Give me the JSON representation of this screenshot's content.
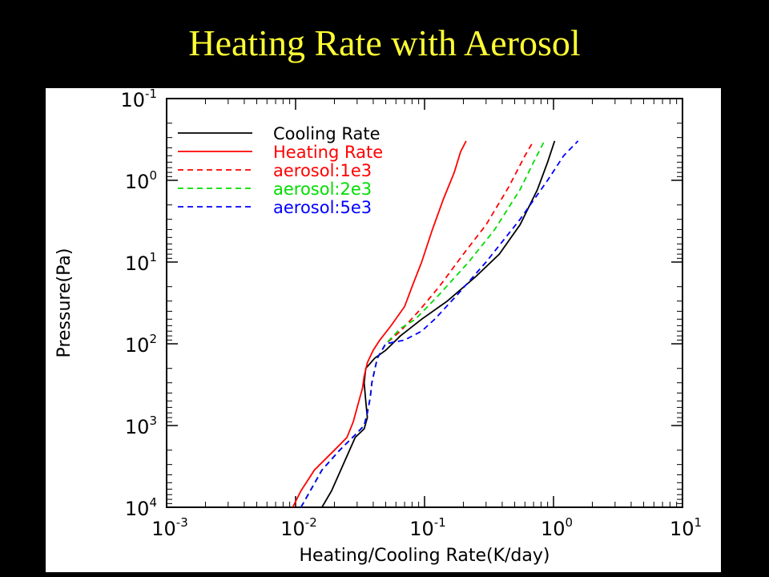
{
  "slide": {
    "title": "Heating Rate with Aerosol"
  },
  "chart_data": {
    "type": "line",
    "title": "",
    "xlabel": "Heating/Cooling Rate(K/day)",
    "ylabel": "Pressure(Pa)",
    "xscale": "log",
    "yscale": "log",
    "yaxis_inverted": true,
    "xlim": [
      0.001,
      10
    ],
    "ylim": [
      10000,
      0.1
    ],
    "grid": false,
    "legend_position": "top-left",
    "x_ticks": [
      {
        "value": 0.001,
        "base": "10",
        "exp": "-3"
      },
      {
        "value": 0.01,
        "base": "10",
        "exp": "-2"
      },
      {
        "value": 0.1,
        "base": "10",
        "exp": "-1"
      },
      {
        "value": 1,
        "base": "10",
        "exp": "0"
      },
      {
        "value": 10,
        "base": "10",
        "exp": "1"
      }
    ],
    "y_ticks": [
      {
        "value": 0.1,
        "base": "10",
        "exp": "-1"
      },
      {
        "value": 1,
        "base": "10",
        "exp": "0"
      },
      {
        "value": 10,
        "base": "10",
        "exp": "1"
      },
      {
        "value": 100,
        "base": "10",
        "exp": "2"
      },
      {
        "value": 1000,
        "base": "10",
        "exp": "3"
      },
      {
        "value": 10000,
        "base": "10",
        "exp": "4"
      }
    ],
    "series": [
      {
        "name": "Cooling Rate",
        "color": "#000000",
        "dash": "solid",
        "points": [
          [
            0.016,
            10000
          ],
          [
            0.019,
            6300
          ],
          [
            0.023,
            3200
          ],
          [
            0.029,
            1400
          ],
          [
            0.034,
            1100
          ],
          [
            0.036,
            800
          ],
          [
            0.035,
            500
          ],
          [
            0.034,
            300
          ],
          [
            0.035,
            200
          ],
          [
            0.041,
            150
          ],
          [
            0.05,
            120
          ],
          [
            0.065,
            80
          ],
          [
            0.095,
            50
          ],
          [
            0.15,
            30
          ],
          [
            0.25,
            15
          ],
          [
            0.38,
            8
          ],
          [
            0.55,
            3.5
          ],
          [
            0.75,
            1.3
          ],
          [
            0.9,
            0.6
          ],
          [
            1.02,
            0.33
          ]
        ]
      },
      {
        "name": "Heating Rate",
        "color": "#ff0000",
        "dash": "solid",
        "points": [
          [
            0.0095,
            10000
          ],
          [
            0.011,
            6300
          ],
          [
            0.014,
            3500
          ],
          [
            0.02,
            2000
          ],
          [
            0.025,
            1400
          ],
          [
            0.028,
            900
          ],
          [
            0.031,
            500
          ],
          [
            0.033,
            350
          ],
          [
            0.034,
            250
          ],
          [
            0.036,
            170
          ],
          [
            0.04,
            120
          ],
          [
            0.045,
            90
          ],
          [
            0.055,
            60
          ],
          [
            0.07,
            35
          ],
          [
            0.08,
            20
          ],
          [
            0.095,
            10
          ],
          [
            0.115,
            4
          ],
          [
            0.14,
            1.7
          ],
          [
            0.17,
            0.8
          ],
          [
            0.19,
            0.45
          ],
          [
            0.21,
            0.33
          ]
        ]
      },
      {
        "name": "aerosol:1e3",
        "color": "#ff0000",
        "dash": "dashed",
        "points": [
          [
            0.011,
            10000
          ],
          [
            0.013,
            6300
          ],
          [
            0.016,
            3500
          ],
          [
            0.022,
            2000
          ],
          [
            0.029,
            1300
          ],
          [
            0.034,
            1000
          ],
          [
            0.036,
            700
          ],
          [
            0.038,
            450
          ],
          [
            0.039,
            300
          ],
          [
            0.043,
            150
          ],
          [
            0.05,
            100
          ],
          [
            0.065,
            70
          ],
          [
            0.09,
            40
          ],
          [
            0.13,
            20
          ],
          [
            0.2,
            8
          ],
          [
            0.3,
            3.5
          ],
          [
            0.45,
            1.2
          ],
          [
            0.6,
            0.5
          ],
          [
            0.7,
            0.33
          ]
        ]
      },
      {
        "name": "aerosol:2e3",
        "color": "#00dd00",
        "dash": "dashed",
        "points": [
          [
            0.011,
            10000
          ],
          [
            0.013,
            6300
          ],
          [
            0.016,
            3500
          ],
          [
            0.022,
            2000
          ],
          [
            0.029,
            1300
          ],
          [
            0.034,
            1000
          ],
          [
            0.036,
            700
          ],
          [
            0.038,
            450
          ],
          [
            0.039,
            300
          ],
          [
            0.043,
            150
          ],
          [
            0.05,
            100
          ],
          [
            0.065,
            65
          ],
          [
            0.085,
            50
          ],
          [
            0.13,
            25
          ],
          [
            0.22,
            10
          ],
          [
            0.35,
            4
          ],
          [
            0.55,
            1.3
          ],
          [
            0.7,
            0.6
          ],
          [
            0.85,
            0.33
          ]
        ]
      },
      {
        "name": "aerosol:5e3",
        "color": "#0000ff",
        "dash": "dashed",
        "points": [
          [
            0.011,
            10000
          ],
          [
            0.013,
            6300
          ],
          [
            0.016,
            3500
          ],
          [
            0.022,
            2000
          ],
          [
            0.029,
            1300
          ],
          [
            0.034,
            1000
          ],
          [
            0.036,
            700
          ],
          [
            0.038,
            450
          ],
          [
            0.039,
            300
          ],
          [
            0.043,
            150
          ],
          [
            0.05,
            100
          ],
          [
            0.07,
            90
          ],
          [
            0.095,
            70
          ],
          [
            0.12,
            50
          ],
          [
            0.18,
            25
          ],
          [
            0.3,
            10
          ],
          [
            0.55,
            3
          ],
          [
            0.9,
            1
          ],
          [
            1.2,
            0.5
          ],
          [
            1.55,
            0.33
          ]
        ]
      }
    ]
  }
}
